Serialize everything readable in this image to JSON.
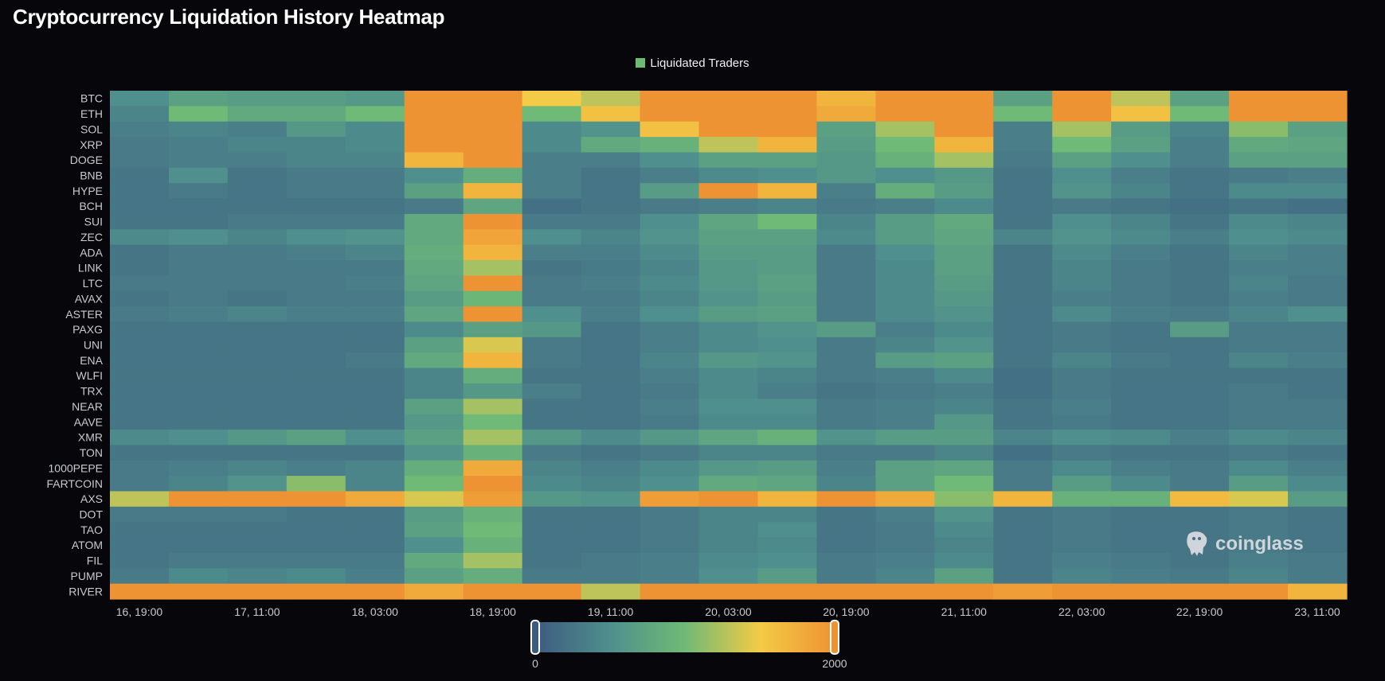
{
  "title": "Cryptocurrency Liquidation History Heatmap",
  "legend": {
    "label": "Liquidated Traders",
    "color": "#6dbb73"
  },
  "watermark": "coinglass",
  "chart_data": {
    "type": "heatmap",
    "title": "Cryptocurrency Liquidation History Heatmap",
    "series_name": "Liquidated Traders",
    "value_range": [
      0,
      2000
    ],
    "color_scale": [
      "#3d5b7f",
      "#4f8f8d",
      "#6fba76",
      "#f3cb46",
      "#ee9333"
    ],
    "scale_labels": [
      "0",
      "2000"
    ],
    "x_tick_labels": [
      "16, 19:00",
      "17, 11:00",
      "18, 03:00",
      "18, 19:00",
      "19, 11:00",
      "20, 03:00",
      "20, 19:00",
      "21, 11:00",
      "22, 03:00",
      "22, 19:00",
      "23, 11:00"
    ],
    "y_categories": [
      "BTC",
      "ETH",
      "SOL",
      "XRP",
      "DOGE",
      "BNB",
      "HYPE",
      "BCH",
      "SUI",
      "ZEC",
      "ADA",
      "LINK",
      "LTC",
      "AVAX",
      "ASTER",
      "PAXG",
      "UNI",
      "ENA",
      "WLFI",
      "TRX",
      "NEAR",
      "AAVE",
      "XMR",
      "TON",
      "1000PEPE",
      "FARTCOIN",
      "AXS",
      "DOT",
      "TAO",
      "ATOM",
      "FIL",
      "PUMP",
      "RIVER"
    ],
    "values": [
      [
        500,
        700,
        650,
        650,
        600,
        2000,
        2000,
        1500,
        1300,
        2000,
        2000,
        2000,
        1700,
        2000,
        2000,
        700,
        2000,
        1300,
        700,
        2000,
        2000
      ],
      [
        400,
        1000,
        800,
        800,
        1000,
        2000,
        2000,
        1000,
        1600,
        2000,
        2000,
        2000,
        1800,
        2000,
        2000,
        1000,
        2000,
        1600,
        1000,
        2000,
        2000
      ],
      [
        350,
        400,
        350,
        600,
        450,
        2000,
        2000,
        450,
        550,
        1600,
        2000,
        2000,
        700,
        1200,
        2000,
        350,
        1200,
        650,
        400,
        1100,
        700
      ],
      [
        300,
        350,
        400,
        400,
        450,
        2000,
        2000,
        450,
        800,
        900,
        1300,
        1700,
        650,
        1000,
        1700,
        350,
        1000,
        700,
        350,
        800,
        750
      ],
      [
        300,
        350,
        350,
        400,
        400,
        1700,
        2000,
        350,
        350,
        500,
        700,
        700,
        600,
        900,
        1200,
        300,
        700,
        500,
        350,
        700,
        700
      ],
      [
        250,
        500,
        250,
        300,
        300,
        500,
        850,
        350,
        250,
        350,
        450,
        500,
        600,
        500,
        600,
        250,
        500,
        350,
        250,
        300,
        350
      ],
      [
        250,
        300,
        250,
        300,
        300,
        700,
        1700,
        350,
        250,
        650,
        2000,
        1700,
        350,
        850,
        650,
        250,
        550,
        400,
        250,
        450,
        450
      ],
      [
        250,
        250,
        250,
        250,
        250,
        300,
        750,
        200,
        250,
        300,
        350,
        400,
        300,
        350,
        450,
        250,
        300,
        250,
        200,
        250,
        200
      ],
      [
        250,
        250,
        300,
        300,
        300,
        800,
        2000,
        300,
        300,
        500,
        750,
        1000,
        400,
        650,
        800,
        250,
        500,
        400,
        250,
        450,
        400
      ],
      [
        450,
        500,
        400,
        500,
        550,
        800,
        1850,
        500,
        400,
        550,
        700,
        700,
        450,
        650,
        750,
        400,
        550,
        450,
        350,
        500,
        450
      ],
      [
        250,
        300,
        300,
        350,
        400,
        850,
        1700,
        350,
        350,
        450,
        650,
        650,
        300,
        500,
        700,
        250,
        450,
        350,
        250,
        400,
        350
      ],
      [
        250,
        300,
        300,
        300,
        300,
        800,
        1200,
        250,
        300,
        400,
        600,
        650,
        300,
        450,
        700,
        250,
        400,
        300,
        250,
        350,
        350
      ],
      [
        300,
        300,
        300,
        300,
        350,
        750,
        2000,
        300,
        350,
        450,
        600,
        700,
        300,
        450,
        650,
        250,
        400,
        300,
        250,
        400,
        300
      ],
      [
        250,
        300,
        250,
        300,
        300,
        650,
        950,
        300,
        300,
        400,
        550,
        650,
        300,
        450,
        600,
        250,
        350,
        300,
        250,
        350,
        300
      ],
      [
        300,
        350,
        400,
        350,
        350,
        750,
        2000,
        500,
        350,
        500,
        650,
        700,
        300,
        450,
        550,
        250,
        450,
        350,
        300,
        400,
        500
      ],
      [
        250,
        250,
        250,
        250,
        250,
        450,
        700,
        600,
        250,
        350,
        450,
        550,
        650,
        350,
        450,
        250,
        300,
        250,
        650,
        300,
        300
      ],
      [
        250,
        250,
        250,
        250,
        250,
        700,
        1400,
        300,
        250,
        350,
        450,
        500,
        300,
        400,
        550,
        250,
        300,
        250,
        250,
        300,
        300
      ],
      [
        250,
        250,
        250,
        250,
        300,
        800,
        1700,
        300,
        250,
        400,
        600,
        550,
        300,
        650,
        700,
        250,
        400,
        300,
        250,
        400,
        350
      ],
      [
        250,
        250,
        250,
        250,
        250,
        400,
        850,
        250,
        250,
        350,
        450,
        400,
        300,
        350,
        450,
        200,
        300,
        250,
        250,
        250,
        250
      ],
      [
        250,
        250,
        250,
        250,
        250,
        400,
        600,
        350,
        250,
        300,
        450,
        350,
        250,
        300,
        350,
        200,
        300,
        250,
        250,
        300,
        250
      ],
      [
        250,
        250,
        250,
        250,
        250,
        700,
        1200,
        250,
        250,
        350,
        500,
        500,
        300,
        350,
        400,
        250,
        350,
        250,
        250,
        300,
        300
      ],
      [
        250,
        250,
        250,
        250,
        250,
        600,
        1000,
        250,
        250,
        300,
        450,
        450,
        300,
        350,
        600,
        250,
        300,
        250,
        250,
        300,
        300
      ],
      [
        450,
        500,
        600,
        700,
        500,
        700,
        1200,
        600,
        450,
        600,
        750,
        900,
        550,
        650,
        650,
        400,
        500,
        450,
        350,
        450,
        400
      ],
      [
        250,
        250,
        250,
        250,
        250,
        550,
        900,
        300,
        250,
        300,
        400,
        400,
        300,
        300,
        400,
        200,
        300,
        250,
        250,
        300,
        250
      ],
      [
        300,
        350,
        400,
        350,
        400,
        850,
        1800,
        400,
        350,
        450,
        600,
        650,
        350,
        700,
        750,
        300,
        450,
        350,
        300,
        450,
        350
      ],
      [
        300,
        400,
        550,
        1100,
        400,
        1000,
        2000,
        450,
        400,
        500,
        800,
        750,
        400,
        700,
        1000,
        300,
        650,
        450,
        300,
        650,
        450
      ],
      [
        1300,
        2000,
        2000,
        2000,
        1800,
        1400,
        1900,
        600,
        550,
        1900,
        2000,
        1700,
        2000,
        1800,
        1100,
        1700,
        900,
        900,
        1650,
        1400,
        650
      ],
      [
        300,
        300,
        300,
        250,
        250,
        650,
        900,
        250,
        250,
        300,
        400,
        400,
        250,
        350,
        550,
        250,
        300,
        250,
        250,
        300,
        250
      ],
      [
        250,
        250,
        250,
        250,
        250,
        700,
        1000,
        250,
        250,
        300,
        400,
        500,
        250,
        300,
        450,
        250,
        300,
        250,
        250,
        300,
        250
      ],
      [
        250,
        250,
        250,
        250,
        250,
        500,
        900,
        250,
        250,
        300,
        400,
        450,
        250,
        300,
        400,
        250,
        300,
        250,
        250,
        300,
        250
      ],
      [
        250,
        300,
        300,
        300,
        300,
        800,
        1200,
        250,
        300,
        350,
        450,
        500,
        300,
        350,
        450,
        250,
        350,
        300,
        250,
        350,
        300
      ],
      [
        300,
        450,
        400,
        450,
        350,
        700,
        850,
        300,
        300,
        350,
        500,
        650,
        300,
        400,
        700,
        250,
        400,
        350,
        300,
        400,
        300
      ],
      [
        2000,
        2000,
        2000,
        2000,
        2000,
        1800,
        2000,
        2000,
        1300,
        2000,
        2000,
        2000,
        2000,
        2000,
        2000,
        1900,
        2000,
        2000,
        2000,
        2000,
        1700
      ]
    ]
  }
}
